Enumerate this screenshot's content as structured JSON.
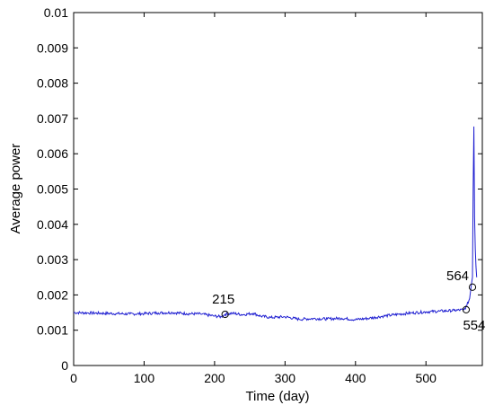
{
  "chart_data": {
    "type": "line",
    "title": "",
    "xlabel": "Time (day)",
    "ylabel": "Average power",
    "xlim": [
      0,
      580
    ],
    "ylim": [
      0,
      0.01
    ],
    "xticks": [
      "0",
      "100",
      "200",
      "300",
      "400",
      "500"
    ],
    "yticks": [
      "0",
      "0.001",
      "0.002",
      "0.003",
      "0.004",
      "0.005",
      "0.006",
      "0.007",
      "0.008",
      "0.009",
      "0.01"
    ],
    "grid": false,
    "series_color": "#1f1fd1",
    "series": [
      {
        "x": [
          0,
          20,
          40,
          60,
          80,
          100,
          120,
          140,
          160,
          180,
          200,
          210,
          215,
          225,
          240,
          255,
          265,
          280,
          300,
          320,
          340,
          360,
          380,
          400,
          420,
          440,
          460,
          480,
          500,
          520,
          540,
          554,
          558,
          562,
          564,
          566,
          567,
          568,
          569,
          570,
          571,
          572
        ],
        "y": [
          0.0015,
          0.00149,
          0.00148,
          0.00147,
          0.00146,
          0.00147,
          0.00149,
          0.0015,
          0.00147,
          0.00146,
          0.0014,
          0.00138,
          0.00145,
          0.00148,
          0.00144,
          0.00148,
          0.0014,
          0.00136,
          0.00138,
          0.00131,
          0.00133,
          0.00132,
          0.00134,
          0.0013,
          0.00134,
          0.0014,
          0.00145,
          0.00149,
          0.00152,
          0.00154,
          0.00156,
          0.00158,
          0.0017,
          0.0019,
          0.00222,
          0.0025,
          0.005,
          0.00677,
          0.0042,
          0.0033,
          0.0028,
          0.0025
        ]
      }
    ],
    "annotations": [
      {
        "label": "215",
        "x": 215,
        "y": 0.00145
      },
      {
        "label": "564",
        "x": 566,
        "y": 0.00222
      },
      {
        "label": "554",
        "x": 557,
        "y": 0.00158
      }
    ]
  }
}
